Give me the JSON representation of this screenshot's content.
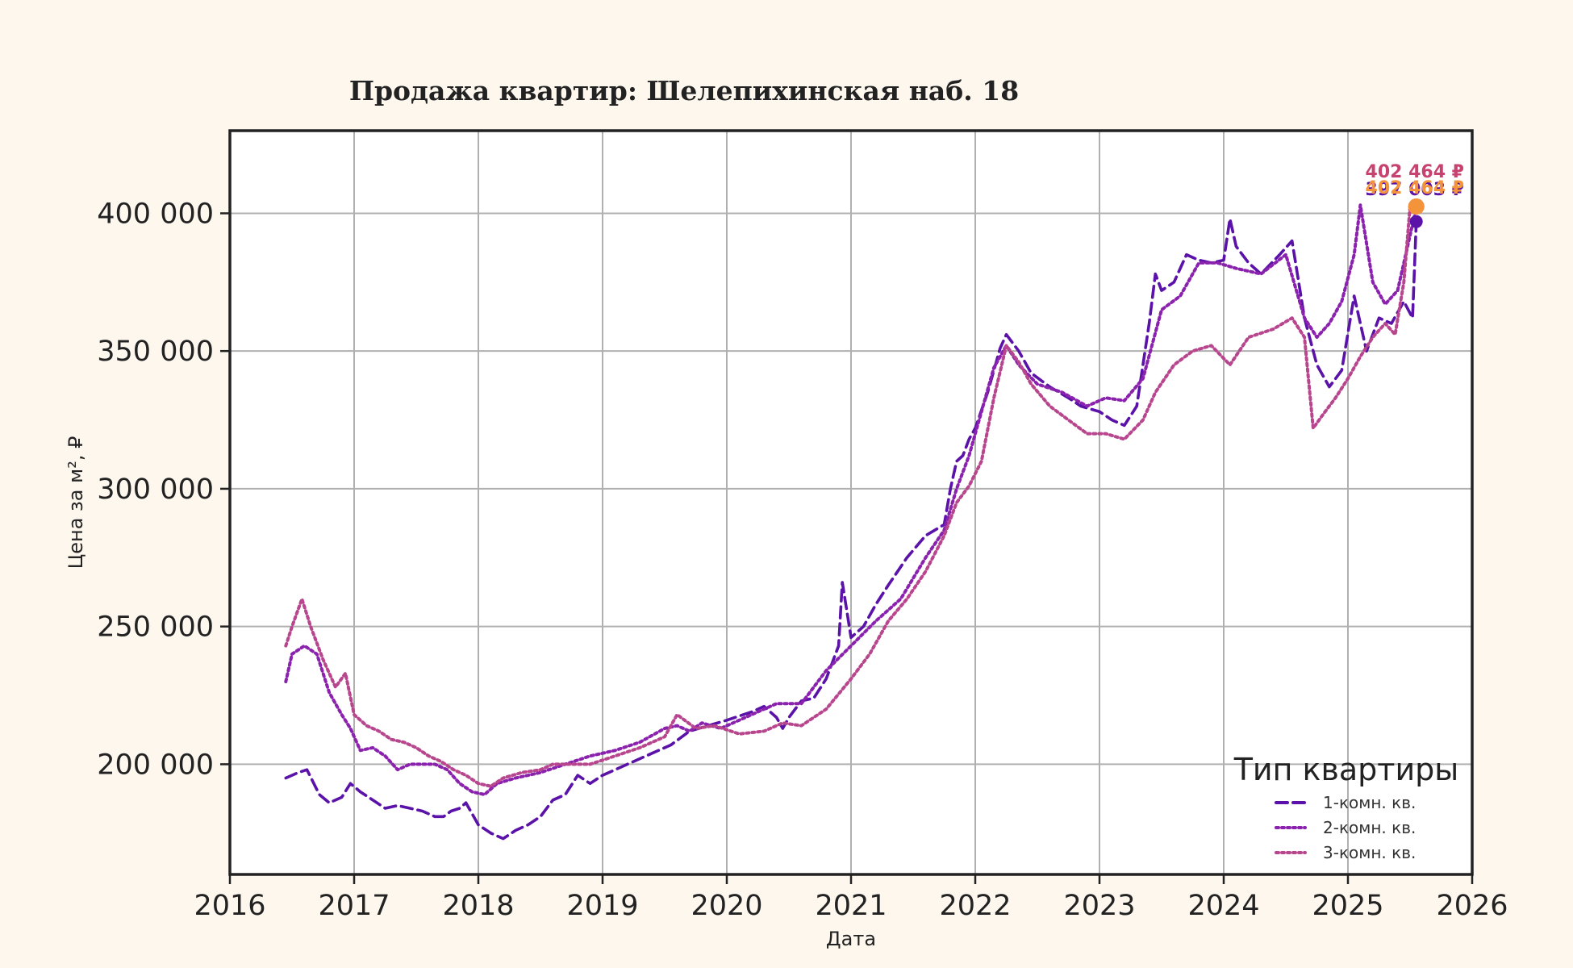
{
  "chart_data": {
    "type": "line",
    "title": "Продажа квартир: Шелепихинская наб. 18",
    "xlabel": "Дата",
    "ylabel": "Цена за м², ₽",
    "xlim": [
      2016,
      2026
    ],
    "ylim": [
      160000,
      430000
    ],
    "x_ticks": [
      2016,
      2017,
      2018,
      2019,
      2020,
      2021,
      2022,
      2023,
      2024,
      2025,
      2026
    ],
    "x_tick_labels": [
      "2016",
      "2017",
      "2018",
      "2019",
      "2020",
      "2021",
      "2022",
      "2023",
      "2024",
      "2025",
      "2026"
    ],
    "y_ticks": [
      200000,
      250000,
      300000,
      350000,
      400000
    ],
    "y_tick_labels": [
      "200 000",
      "250 000",
      "300 000",
      "350 000",
      "400 000"
    ],
    "grid": true,
    "legend": {
      "title": "Тип квартиры",
      "position": "lower-right"
    },
    "series": [
      {
        "name": "1-комн. кв.",
        "color": "#5a12a8",
        "dash": "dashed",
        "x": [
          2016.45,
          2016.55,
          2016.62,
          2016.72,
          2016.8,
          2016.9,
          2016.97,
          2017.05,
          2017.15,
          2017.25,
          2017.35,
          2017.45,
          2017.55,
          2017.65,
          2017.72,
          2017.78,
          2017.85,
          2017.9,
          2018.0,
          2018.1,
          2018.2,
          2018.3,
          2018.4,
          2018.5,
          2018.6,
          2018.7,
          2018.8,
          2018.9,
          2019.0,
          2019.2,
          2019.4,
          2019.55,
          2019.7,
          2019.85,
          2020.0,
          2020.2,
          2020.3,
          2020.4,
          2020.45,
          2020.5,
          2020.6,
          2020.7,
          2020.8,
          2020.9,
          2020.93,
          2021.0,
          2021.1,
          2021.2,
          2021.3,
          2021.45,
          2021.6,
          2021.75,
          2021.8,
          2021.85,
          2021.9,
          2021.95,
          2022.0,
          2022.1,
          2022.2,
          2022.25,
          2022.35,
          2022.45,
          2022.6,
          2022.75,
          2022.85,
          2023.0,
          2023.1,
          2023.2,
          2023.3,
          2023.35,
          2023.4,
          2023.45,
          2023.5,
          2023.6,
          2023.7,
          2023.8,
          2023.9,
          2024.0,
          2024.05,
          2024.1,
          2024.2,
          2024.3,
          2024.45,
          2024.55,
          2024.65,
          2024.75,
          2024.85,
          2024.95,
          2025.05,
          2025.15,
          2025.25,
          2025.35,
          2025.45,
          2025.52,
          2025.55
        ],
        "values": [
          195000,
          197000,
          198000,
          189000,
          186000,
          188000,
          193000,
          190000,
          187000,
          184000,
          185000,
          184000,
          183000,
          181000,
          181000,
          183000,
          184000,
          186000,
          178000,
          175000,
          173000,
          176000,
          178000,
          181000,
          187000,
          189000,
          196000,
          193000,
          196000,
          200000,
          204000,
          207000,
          212000,
          214000,
          216000,
          219000,
          221000,
          217000,
          213000,
          217000,
          223000,
          224000,
          231000,
          243000,
          266000,
          246000,
          250000,
          258000,
          265000,
          275000,
          283000,
          287000,
          300000,
          310000,
          312000,
          318000,
          322000,
          335000,
          351000,
          356000,
          350000,
          342000,
          337000,
          333000,
          330000,
          328000,
          325000,
          323000,
          330000,
          345000,
          360000,
          378000,
          372000,
          375000,
          385000,
          383000,
          382000,
          383000,
          398000,
          388000,
          382000,
          378000,
          385000,
          390000,
          362000,
          345000,
          337000,
          343000,
          370000,
          350000,
          362000,
          360000,
          368000,
          362000,
          397000
        ]
      },
      {
        "name": "2-комн. кв.",
        "color": "#8a22ad",
        "dash": "dotted",
        "x": [
          2016.45,
          2016.5,
          2016.6,
          2016.7,
          2016.8,
          2016.9,
          2016.97,
          2017.05,
          2017.15,
          2017.25,
          2017.35,
          2017.45,
          2017.55,
          2017.65,
          2017.75,
          2017.85,
          2017.95,
          2018.05,
          2018.15,
          2018.3,
          2018.5,
          2018.7,
          2018.9,
          2019.1,
          2019.3,
          2019.5,
          2019.6,
          2019.7,
          2019.8,
          2019.95,
          2020.1,
          2020.2,
          2020.3,
          2020.4,
          2020.6,
          2020.8,
          2021.0,
          2021.2,
          2021.4,
          2021.6,
          2021.75,
          2021.85,
          2021.95,
          2022.05,
          2022.15,
          2022.25,
          2022.35,
          2022.5,
          2022.7,
          2022.9,
          2023.05,
          2023.2,
          2023.35,
          2023.5,
          2023.65,
          2023.8,
          2023.95,
          2024.1,
          2024.3,
          2024.5,
          2024.65,
          2024.75,
          2024.85,
          2024.95,
          2025.05,
          2025.1,
          2025.2,
          2025.3,
          2025.4,
          2025.5,
          2025.55
        ],
        "values": [
          230000,
          240000,
          243000,
          240000,
          226000,
          218000,
          213000,
          205000,
          206000,
          203000,
          198000,
          200000,
          200000,
          200000,
          198000,
          193000,
          190000,
          189000,
          193000,
          195000,
          197000,
          200000,
          203000,
          205000,
          208000,
          213000,
          214000,
          212000,
          215000,
          213000,
          216000,
          218000,
          220000,
          222000,
          222000,
          234000,
          243000,
          252000,
          260000,
          275000,
          285000,
          300000,
          312000,
          328000,
          344000,
          352000,
          345000,
          338000,
          335000,
          330000,
          333000,
          332000,
          340000,
          365000,
          370000,
          382000,
          382000,
          380000,
          378000,
          385000,
          362000,
          355000,
          360000,
          368000,
          385000,
          403000,
          375000,
          367000,
          372000,
          392000,
          402000
        ]
      },
      {
        "name": "3-комн. кв.",
        "color": "#b8468e",
        "dash": "dotted",
        "x": [
          2016.45,
          2016.5,
          2016.58,
          2016.65,
          2016.75,
          2016.85,
          2016.93,
          2017.0,
          2017.1,
          2017.2,
          2017.3,
          2017.4,
          2017.5,
          2017.6,
          2017.7,
          2017.8,
          2017.9,
          2018.0,
          2018.1,
          2018.2,
          2018.35,
          2018.5,
          2018.6,
          2018.75,
          2018.9,
          2019.1,
          2019.3,
          2019.5,
          2019.6,
          2019.75,
          2019.9,
          2020.1,
          2020.3,
          2020.45,
          2020.6,
          2020.8,
          2021.0,
          2021.15,
          2021.3,
          2021.45,
          2021.6,
          2021.75,
          2021.85,
          2021.95,
          2022.05,
          2022.15,
          2022.25,
          2022.35,
          2022.45,
          2022.6,
          2022.75,
          2022.9,
          2023.05,
          2023.2,
          2023.35,
          2023.45,
          2023.6,
          2023.75,
          2023.9,
          2024.05,
          2024.2,
          2024.4,
          2024.55,
          2024.65,
          2024.72,
          2024.8,
          2024.9,
          2025.0,
          2025.1,
          2025.2,
          2025.3,
          2025.38,
          2025.45,
          2025.5
        ],
        "values": [
          243000,
          250000,
          260000,
          250000,
          238000,
          228000,
          233000,
          218000,
          214000,
          212000,
          209000,
          208000,
          206000,
          203000,
          201000,
          198000,
          196000,
          193000,
          192000,
          195000,
          197000,
          198000,
          200000,
          200000,
          200000,
          203000,
          206000,
          210000,
          218000,
          213000,
          214000,
          211000,
          212000,
          215000,
          214000,
          220000,
          231000,
          240000,
          252000,
          260000,
          270000,
          283000,
          295000,
          301000,
          310000,
          333000,
          352000,
          346000,
          338000,
          330000,
          325000,
          320000,
          320000,
          318000,
          325000,
          335000,
          345000,
          350000,
          352000,
          345000,
          355000,
          358000,
          362000,
          355000,
          322000,
          327000,
          333000,
          340000,
          348000,
          355000,
          360000,
          356000,
          375000,
          402464
        ]
      }
    ],
    "end_markers": [
      {
        "series": "3-комн. кв.",
        "value": 402464,
        "label": "402 464 ₽",
        "color": "#c7426f"
      },
      {
        "series": "1-комн. кв.",
        "value": 397003,
        "label": "397 003 ₽",
        "color": "#5a12a8"
      },
      {
        "series": "2-комн. кв.",
        "value": 402464,
        "label": "402 464 ₽",
        "color": "#f4943a"
      }
    ]
  }
}
